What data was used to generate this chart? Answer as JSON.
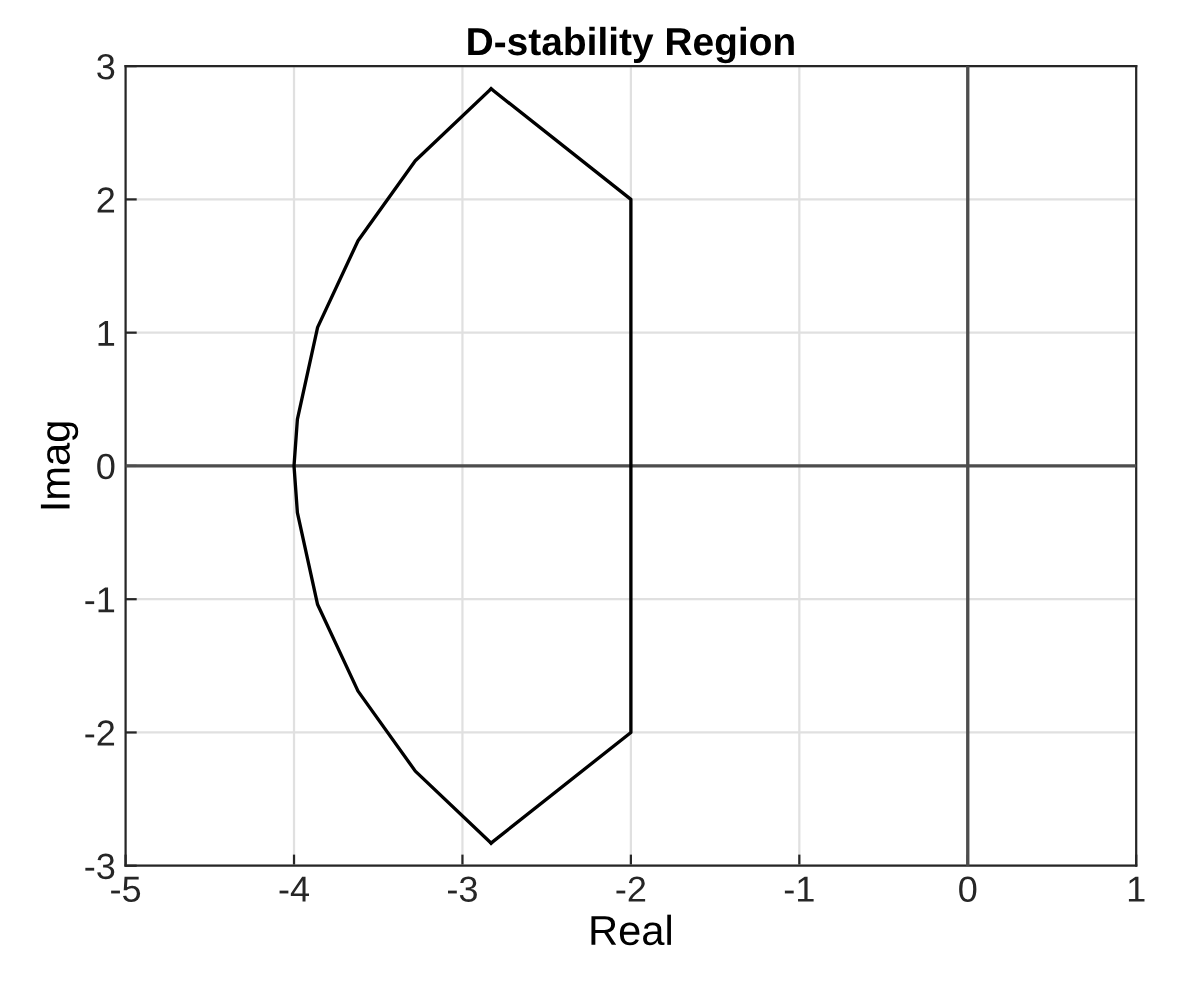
{
  "chart_data": {
    "type": "line",
    "title": "D-stability Region",
    "xlabel": "Real",
    "ylabel": "Imag",
    "xlim": [
      -5,
      1
    ],
    "ylim": [
      -3,
      3
    ],
    "xticks": [
      -5,
      -4,
      -3,
      -2,
      -1,
      0,
      1
    ],
    "yticks": [
      -3,
      -2,
      -1,
      0,
      1,
      2,
      3
    ],
    "grid": true,
    "series": [
      {
        "color": "#4d4d4d",
        "x": [
          0,
          0
        ],
        "values": [
          -3,
          3
        ]
      },
      {
        "color": "#4d4d4d",
        "x": [
          -5,
          1
        ],
        "values": [
          0,
          0
        ]
      },
      {
        "color": "#000000",
        "x": [
          -2.83,
          -3.28,
          -3.62,
          -3.86,
          -3.98,
          -4.0,
          -3.98,
          -3.86,
          -3.62,
          -3.28,
          -2.83
        ],
        "values": [
          2.83,
          2.29,
          1.69,
          1.04,
          0.35,
          0.0,
          -0.35,
          -1.04,
          -1.69,
          -2.29,
          -2.83
        ]
      },
      {
        "color": "#000000",
        "x": [
          -2.83,
          -2.0,
          -2.0,
          -2.83
        ],
        "values": [
          2.83,
          2.0,
          -2.0,
          -2.83
        ]
      }
    ]
  }
}
